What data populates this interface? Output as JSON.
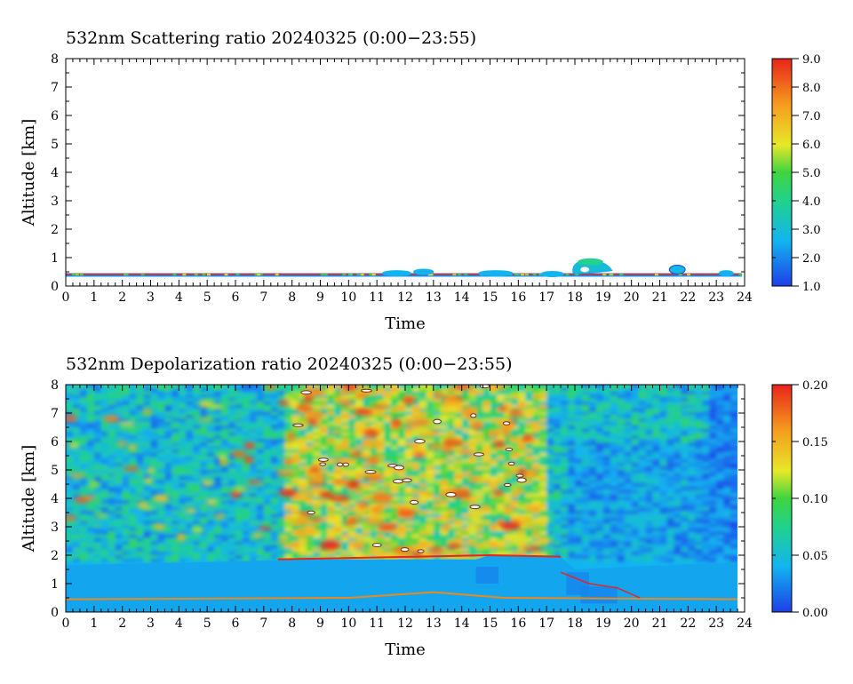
{
  "chart_data": [
    {
      "type": "heatmap",
      "title": "532nm Scattering ratio  20240325 (0:00−23:55)",
      "xlabel": "Time",
      "ylabel": "Altitude [km]",
      "xlim": [
        0,
        24
      ],
      "ylim": [
        0,
        8
      ],
      "x_ticks": [
        "0",
        "1",
        "2",
        "3",
        "4",
        "5",
        "6",
        "7",
        "8",
        "9",
        "10",
        "11",
        "12",
        "13",
        "14",
        "15",
        "16",
        "17",
        "18",
        "19",
        "20",
        "21",
        "22",
        "23",
        "24"
      ],
      "y_ticks": [
        "0",
        "1",
        "2",
        "3",
        "4",
        "5",
        "6",
        "7",
        "8"
      ],
      "colorbar": {
        "min": 1.0,
        "max": 9.0,
        "ticks": [
          "1.0",
          "2.0",
          "3.0",
          "4.0",
          "5.0",
          "6.0",
          "7.0",
          "8.0",
          "9.0"
        ]
      },
      "features": [
        {
          "kind": "near-surface layer",
          "x_range": [
            0,
            23.9
          ],
          "altitude_km": [
            0.33,
            0.45
          ],
          "value": 2.0
        },
        {
          "kind": "cloud",
          "x_range": [
            17.9,
            19.3
          ],
          "altitude_km": [
            0.4,
            1.0
          ],
          "value": 4.0
        },
        {
          "kind": "cloud",
          "x_range": [
            21.4,
            21.9
          ],
          "altitude_km": [
            0.4,
            0.7
          ],
          "value": 2.8
        }
      ]
    },
    {
      "type": "heatmap",
      "title": "532nm Depolarization ratio  20240325 (0:00−23:55)",
      "xlabel": "Time",
      "ylabel": "Altitude [km]",
      "xlim": [
        0,
        24
      ],
      "ylim": [
        0,
        8
      ],
      "x_ticks": [
        "0",
        "1",
        "2",
        "3",
        "4",
        "5",
        "6",
        "7",
        "8",
        "9",
        "10",
        "11",
        "12",
        "13",
        "14",
        "15",
        "16",
        "17",
        "18",
        "19",
        "20",
        "21",
        "22",
        "23",
        "24"
      ],
      "y_ticks": [
        "0",
        "1",
        "2",
        "3",
        "4",
        "5",
        "6",
        "7",
        "8"
      ],
      "colorbar": {
        "min": 0.0,
        "max": 0.2,
        "ticks": [
          "0.00",
          "0.05",
          "0.10",
          "0.15",
          "0.20"
        ]
      },
      "features": [
        {
          "kind": "boundary layer",
          "x_range": [
            0,
            23.75
          ],
          "altitude_km": [
            0.4,
            1.8
          ],
          "value": 0.035
        },
        {
          "kind": "high-depolarization aerosol",
          "x_range": [
            7.5,
            17.0
          ],
          "altitude_km": [
            1.8,
            8.0
          ],
          "value": 0.12
        },
        {
          "kind": "background",
          "x_range": [
            0,
            23.75
          ],
          "altitude_km": [
            1.8,
            8.0
          ],
          "value": 0.05
        }
      ]
    }
  ]
}
